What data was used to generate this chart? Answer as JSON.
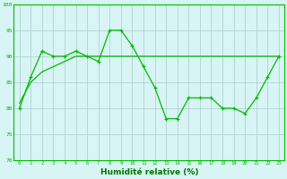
{
  "x_values": [
    0,
    1,
    2,
    3,
    4,
    5,
    6,
    7,
    8,
    9,
    10,
    11,
    12,
    13,
    14,
    15,
    16,
    17,
    18,
    19,
    20,
    21,
    22,
    23
  ],
  "line1_y": [
    80,
    86,
    91,
    90,
    90,
    91,
    90,
    89,
    95,
    95,
    92,
    88,
    84,
    78,
    78,
    82,
    82,
    82,
    80,
    80,
    79,
    82,
    86,
    90
  ],
  "line2_y": [
    81,
    85,
    87,
    88,
    89,
    90,
    90,
    90,
    90,
    90,
    90,
    90,
    90,
    90,
    90,
    90,
    90,
    90,
    90,
    90,
    90,
    90,
    90,
    90
  ],
  "line_color": "#00BB00",
  "background_color": "#D8F4F4",
  "grid_color": "#A8CCCC",
  "xlabel": "Humidité relative (%)",
  "xlabel_color": "#007700",
  "ylim": [
    70,
    100
  ],
  "xlim": [
    -0.5,
    23.5
  ],
  "yticks": [
    70,
    75,
    80,
    85,
    90,
    95,
    100
  ],
  "xticks": [
    0,
    1,
    2,
    3,
    4,
    5,
    6,
    7,
    8,
    9,
    10,
    11,
    12,
    13,
    14,
    15,
    16,
    17,
    18,
    19,
    20,
    21,
    22,
    23
  ]
}
